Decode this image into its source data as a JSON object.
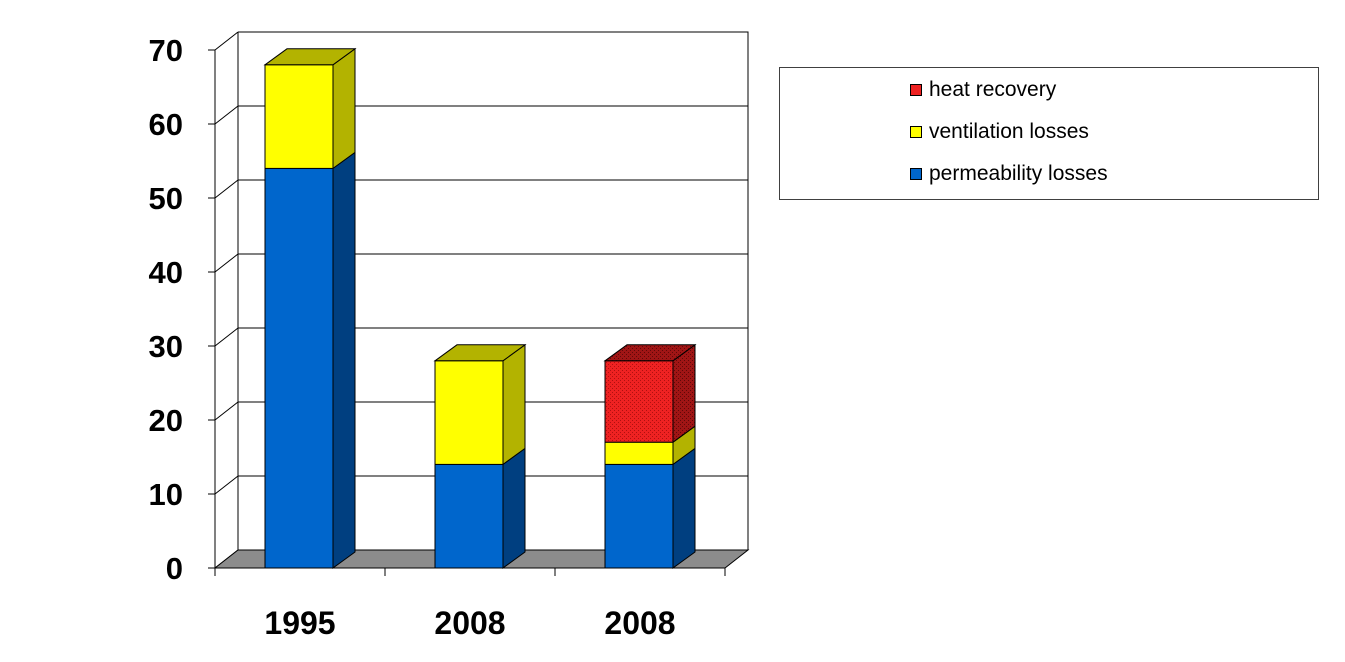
{
  "chart_data": {
    "type": "bar",
    "stacked": true,
    "three_d": true,
    "categories": [
      "1995",
      "2008",
      "2008"
    ],
    "series": [
      {
        "name": "permeability losses",
        "values": [
          54,
          14,
          14
        ],
        "color": "#0066CC",
        "side_color": "#003F80"
      },
      {
        "name": "ventilation losses",
        "values": [
          14,
          14,
          3
        ],
        "color": "#FFFF00",
        "side_color": "#B3B300"
      },
      {
        "name": "heat recovery",
        "values": [
          0,
          0,
          11
        ],
        "color": "#EE2222",
        "side_color": "#A01515"
      }
    ],
    "ylim": [
      0,
      70
    ],
    "yticks": [
      "0",
      "10",
      "20",
      "30",
      "40",
      "50",
      "60",
      "70"
    ],
    "grid": true,
    "legend": {
      "position": "right",
      "order": [
        "heat recovery",
        "ventilation losses",
        "permeability losses"
      ]
    }
  }
}
